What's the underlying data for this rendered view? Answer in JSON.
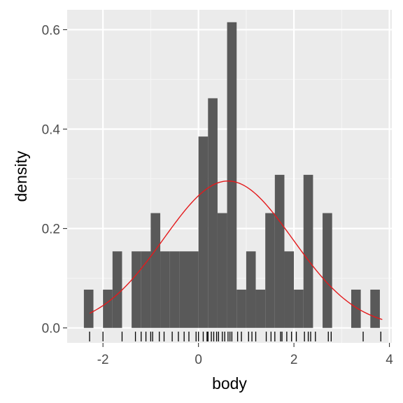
{
  "colors": {
    "panel_background": "#ebebeb",
    "grid_major": "#ffffff",
    "grid_minor": "#f5f5f5",
    "bar_fill": "#595959",
    "density_curve": "#e41a1c",
    "rug": "#000000",
    "tick": "#333333"
  },
  "chart_data": {
    "type": "bar",
    "subtype": "histogram with normal density curve and rug",
    "title": "",
    "xlabel": "body",
    "ylabel": "density",
    "xlim": [
      -2.75,
      4.05
    ],
    "ylim": [
      -0.03,
      0.64
    ],
    "x_ticks": [
      -2,
      0,
      2,
      4
    ],
    "x_tick_labels": [
      "-2",
      "0",
      "2",
      "4"
    ],
    "y_ticks": [
      0.0,
      0.2,
      0.4,
      0.6
    ],
    "y_tick_labels": [
      "0.0",
      "0.2",
      "0.4",
      "0.6"
    ],
    "grid": true,
    "legend": "none",
    "bin_width": 0.2,
    "bins": [
      {
        "start": -2.4,
        "density": 0.077
      },
      {
        "start": -2.2,
        "density": 0.0
      },
      {
        "start": -2.0,
        "density": 0.077
      },
      {
        "start": -1.8,
        "density": 0.154
      },
      {
        "start": -1.6,
        "density": 0.0
      },
      {
        "start": -1.4,
        "density": 0.154
      },
      {
        "start": -1.2,
        "density": 0.154
      },
      {
        "start": -1.0,
        "density": 0.231
      },
      {
        "start": -0.8,
        "density": 0.154
      },
      {
        "start": -0.6,
        "density": 0.154
      },
      {
        "start": -0.4,
        "density": 0.154
      },
      {
        "start": -0.2,
        "density": 0.154
      },
      {
        "start": 0.0,
        "density": 0.385
      },
      {
        "start": 0.2,
        "density": 0.462
      },
      {
        "start": 0.4,
        "density": 0.231
      },
      {
        "start": 0.6,
        "density": 0.615
      },
      {
        "start": 0.8,
        "density": 0.077
      },
      {
        "start": 1.0,
        "density": 0.154
      },
      {
        "start": 1.2,
        "density": 0.077
      },
      {
        "start": 1.4,
        "density": 0.231
      },
      {
        "start": 1.6,
        "density": 0.308
      },
      {
        "start": 1.8,
        "density": 0.154
      },
      {
        "start": 2.0,
        "density": 0.077
      },
      {
        "start": 2.2,
        "density": 0.308
      },
      {
        "start": 2.4,
        "density": 0.0
      },
      {
        "start": 2.6,
        "density": 0.231
      },
      {
        "start": 2.8,
        "density": 0.0
      },
      {
        "start": 3.0,
        "density": 0.0
      },
      {
        "start": 3.2,
        "density": 0.077
      },
      {
        "start": 3.4,
        "density": 0.0
      },
      {
        "start": 3.6,
        "density": 0.077
      }
    ],
    "normal_curve": {
      "mean": 0.62,
      "sd": 1.35,
      "x_range": [
        -2.28,
        3.85
      ]
    },
    "rug_values": [
      -2.28,
      -2.0,
      -1.6,
      -1.32,
      -1.2,
      -1.1,
      -1.0,
      -0.96,
      -0.82,
      -0.72,
      -0.55,
      -0.42,
      -0.3,
      -0.2,
      -0.05,
      0.0,
      0.1,
      0.18,
      0.2,
      0.27,
      0.32,
      0.38,
      0.42,
      0.5,
      0.55,
      0.62,
      0.66,
      0.7,
      0.82,
      0.9,
      1.05,
      1.12,
      1.2,
      1.42,
      1.52,
      1.6,
      1.72,
      1.75,
      1.85,
      1.95,
      2.05,
      2.22,
      2.3,
      2.35,
      2.45,
      2.72,
      2.78,
      3.45,
      3.82
    ]
  }
}
